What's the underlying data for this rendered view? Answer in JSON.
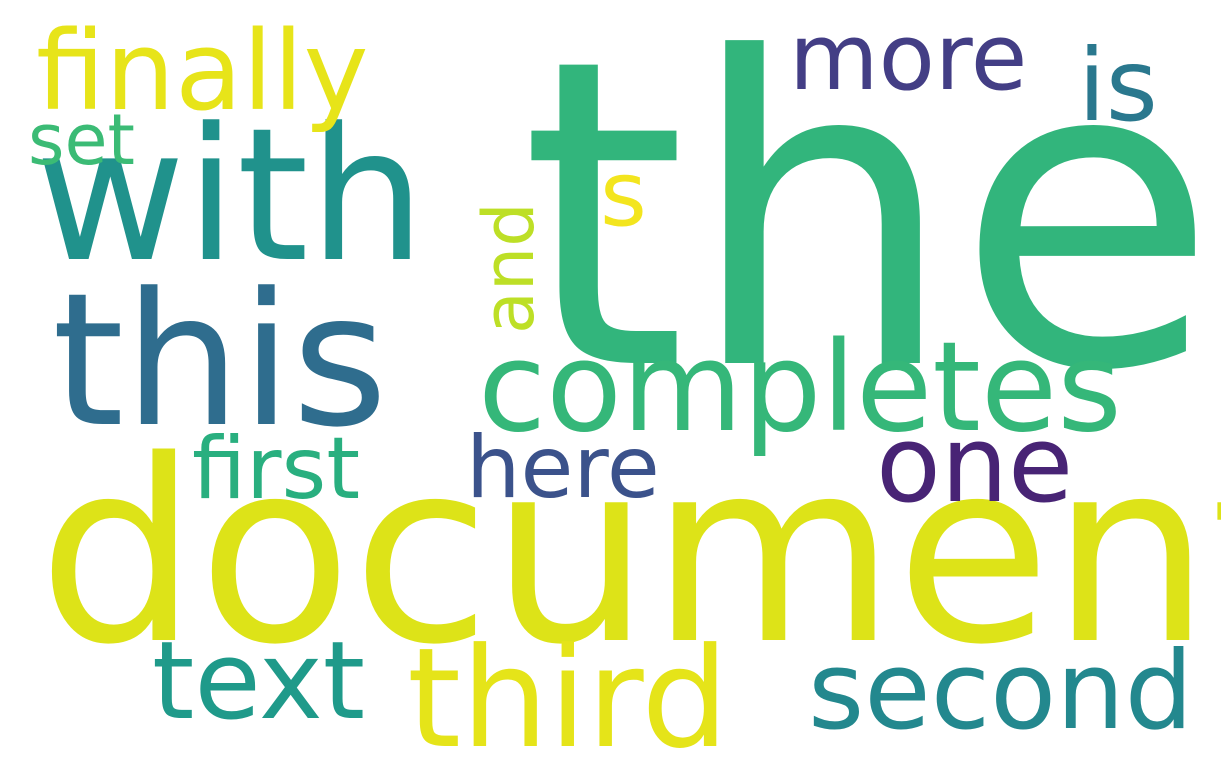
{
  "words": [
    {
      "text": "the",
      "color": "#32b57c"
    },
    {
      "text": "document",
      "color": "#dde318"
    },
    {
      "text": "with",
      "color": "#20928c"
    },
    {
      "text": "this",
      "color": "#2f6d8e"
    },
    {
      "text": "completes",
      "color": "#35b779"
    },
    {
      "text": "third",
      "color": "#e5e419"
    },
    {
      "text": "second",
      "color": "#23888e"
    },
    {
      "text": "text",
      "color": "#1f9a8a"
    },
    {
      "text": "finally",
      "color": "#e7e419"
    },
    {
      "text": "more",
      "color": "#433e85"
    },
    {
      "text": "one",
      "color": "#482475"
    },
    {
      "text": "here",
      "color": "#3b528b"
    },
    {
      "text": "first",
      "color": "#29af7f"
    },
    {
      "text": "is",
      "color": "#2a788e"
    },
    {
      "text": "set",
      "color": "#3bbb75"
    },
    {
      "text": "and",
      "color": "#bddf26"
    },
    {
      "text": "s",
      "color": "#f3e51e"
    }
  ]
}
